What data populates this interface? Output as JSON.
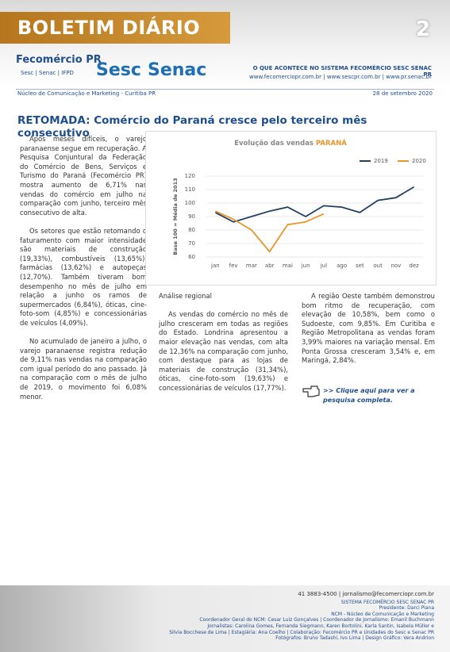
{
  "header": {
    "title": "BOLETIM DIÁRIO",
    "page_number": "2",
    "logos": [
      "Fecomércio PR",
      "Sesc | Senac | IFPD",
      "Sesc",
      "Senac"
    ],
    "tagline": "O QUE ACONTECE NO SISTEMA FECOMÉRCIO SESC SENAC PR",
    "sites": "www.fecomerciopr.com.br | www.sescpr.com.br | www.pr.senac.br",
    "department": "Núcleo de Comunicação e Marketing - Curitiba PR",
    "date": "28 de setembro 2020"
  },
  "article": {
    "headline": "RETOMADA: Comércio do Paraná cresce pelo terceiro mês consecutivo",
    "column1": [
      "Após meses difíceis, o varejo paranaense segue em recuperação. A Pesquisa Conjuntural da Federação do Comércio de Bens, Serviços e Turismo do Paraná (Fecomércio PR) mostra aumento de 6,71% nas vendas do comércio em julho na comparação com junho, terceiro mês consecutivo de alta.",
      "Os setores que estão retomando o faturamento com maior intensidade são materiais de construção (19,33%), combustíveis (13,65%), farmácias (13,62%) e autopeças (12,70%). Também tiveram bom desempenho no mês de julho em relação a junho os ramos de supermercados (6,84%), óticas, cine-foto-som (4,85%) e concessionárias de veículos (4,09%).",
      "No acumulado de janeiro a julho, o varejo paranaense registra redução de 9,11% nas vendas na comparação com igual período do ano passado. Já na comparação com o mês de julho de 2019, o movimento foi 6,08% menor."
    ],
    "column2_heading": "Análise regional",
    "column2": [
      "As vendas do comércio no mês de julho cresceram em todas as regiões do Estado. Londrina apresentou a maior elevação nas vendas, com alta de 12,36% na comparação com junho, com destaque para as lojas de materiais de construção (31,34%), óticas, cine-foto-som (19,63%) e concessionárias de veículos (17,77%)."
    ],
    "column3": [
      "A região Oeste também demonstrou bom ritmo de recuperação, com elevação de 10,58%, bem como o Sudoeste, com 9,85%. Em Curitiba e Região Metropolitana as vendas foram 3,99% maiores na variação mensal. Em Ponta Grossa cresceram 3,54% e, em Maringá, 2,84%."
    ],
    "link": ">> Clique aqui para ver a pesquisa completa."
  },
  "chart_data": {
    "type": "line",
    "title": "Evolução das vendas",
    "title_highlight": "PARANÁ",
    "y_label": "Base 100 = Média de 2013",
    "categories": [
      "jan",
      "fev",
      "mar",
      "abr",
      "mai",
      "jun",
      "jul",
      "ago",
      "set",
      "out",
      "nov",
      "dez"
    ],
    "series": [
      {
        "name": "2019",
        "color": "#243f60",
        "values": [
          93,
          86,
          90,
          94,
          97,
          90,
          98,
          97,
          93,
          102,
          104,
          112
        ]
      },
      {
        "name": "2020",
        "color": "#e7962b",
        "values": [
          94,
          88,
          80,
          64,
          84,
          86,
          92,
          null,
          null,
          null,
          null,
          null
        ]
      }
    ],
    "ylim": [
      60,
      120
    ],
    "yticks": [
      60,
      70,
      80,
      90,
      100,
      110,
      120
    ],
    "grid": true,
    "legend": "top-right"
  },
  "footer": {
    "lines": [
      "41 3883-4500 | jornalismo@fecomerciopr.com.br",
      "SISTEMA FECOMÉRCIO SESC SENAC PR",
      "Presidente: Darci Piana",
      "NCM - Núcleo de Comunicação e Marketing",
      "Coordenador Geral do NCM: Cesar Luiz Gonçalves | Coordenador de Jornalismo: Emanil Buchmann",
      "Jornalistas: Carolina Gomes, Fernanda Siegmann, Karen Bortolini, Karla Santin, Isabela Müller e",
      "Silvia Bocchese de Lima | Estagiária: Ana Coelho | Colaboração: Fecomércio PR e Unidades do Sesc e Senac PR",
      "Fotógrafos: Bruno Tadashi, Ivo Lima | Design Gráfico: Vera Andrion"
    ]
  }
}
